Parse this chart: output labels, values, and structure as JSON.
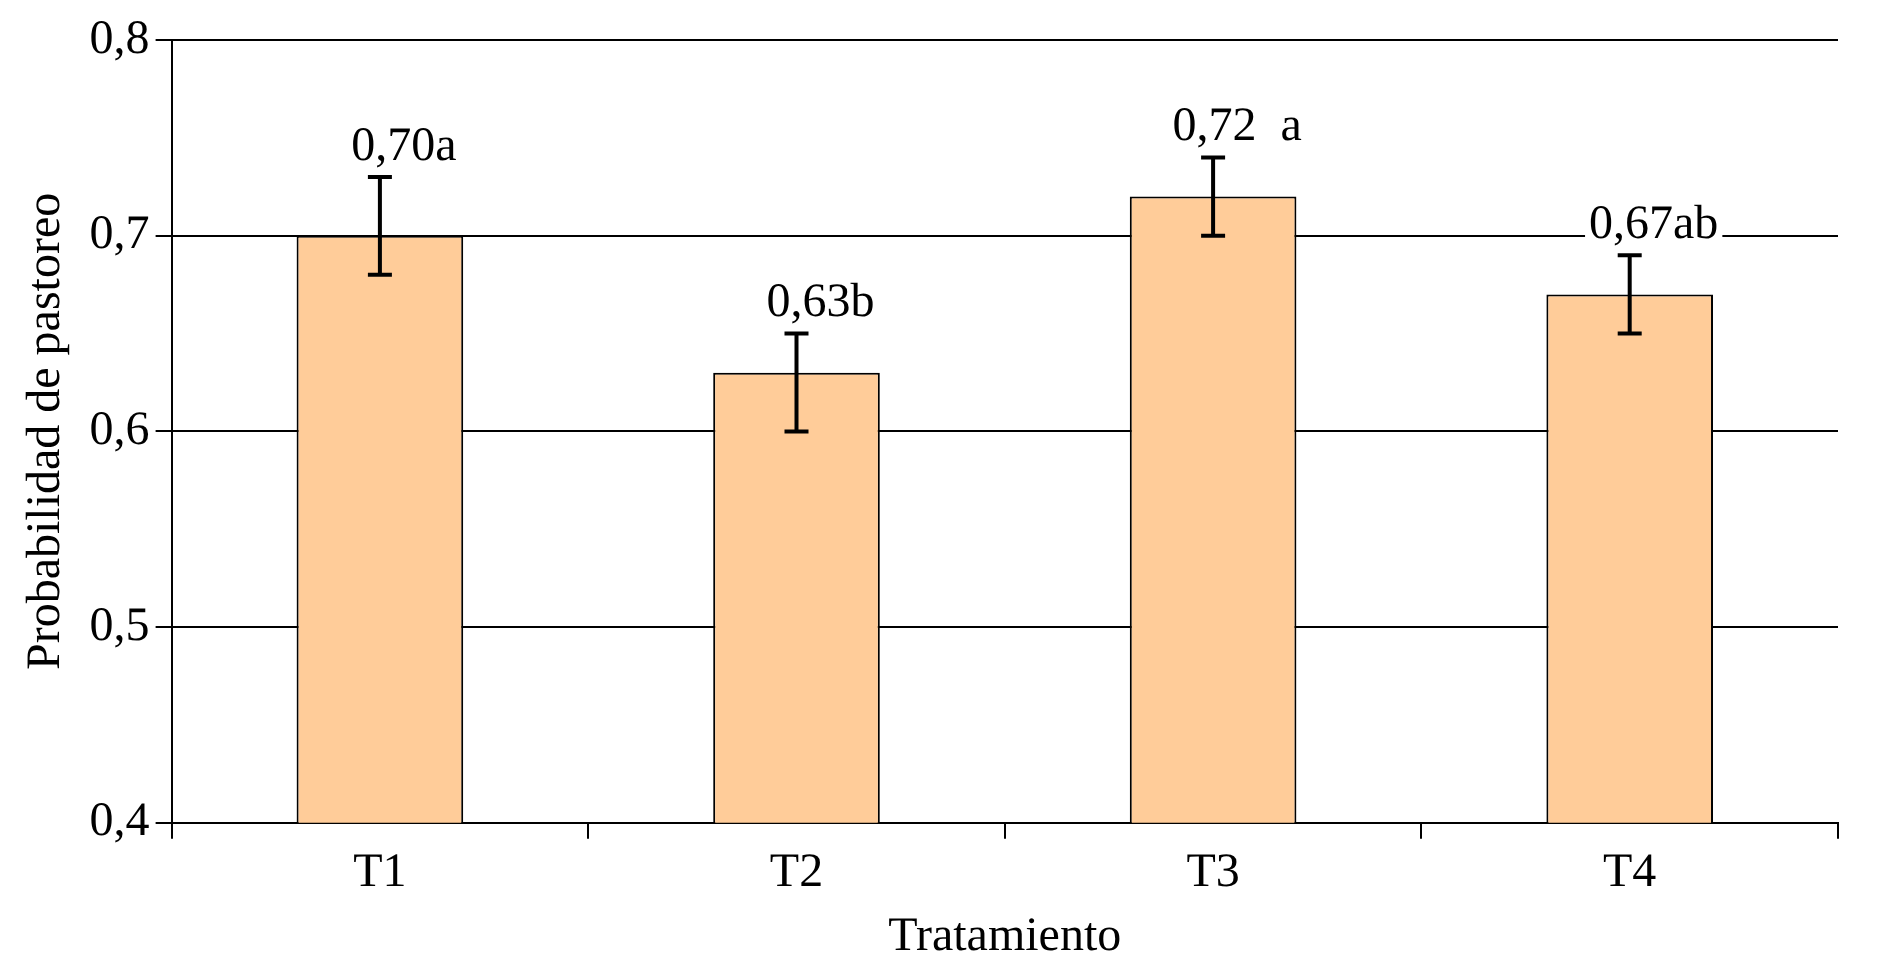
{
  "chart_data": {
    "type": "bar",
    "xlabel": "Tratamiento",
    "ylabel": "Probabilidad de pastoreo",
    "categories": [
      "T1",
      "T2",
      "T3",
      "T4"
    ],
    "values": [
      0.7,
      0.63,
      0.72,
      0.67
    ],
    "errors": [
      [
        0.68,
        0.73
      ],
      [
        0.6,
        0.65
      ],
      [
        0.7,
        0.74
      ],
      [
        0.65,
        0.69
      ]
    ],
    "value_labels": [
      "0,70a",
      "0,63b",
      "0,72  a",
      "0,67ab"
    ],
    "color": "#ffcc99",
    "ylim": [
      0.4,
      0.8
    ],
    "yticks": [
      {
        "value": 0.4,
        "label": "0,4"
      },
      {
        "value": 0.5,
        "label": "0,5"
      },
      {
        "value": 0.6,
        "label": "0,6"
      },
      {
        "value": 0.7,
        "label": "0,7"
      },
      {
        "value": 0.8,
        "label": "0,8"
      }
    ],
    "grid": "y",
    "legend": false
  }
}
